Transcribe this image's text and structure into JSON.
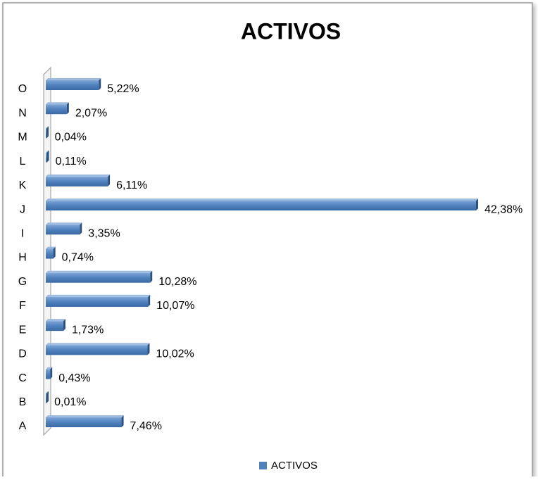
{
  "chart_data": {
    "type": "bar",
    "orientation": "horizontal",
    "title": "ACTIVOS",
    "categories": [
      "A",
      "B",
      "C",
      "D",
      "E",
      "F",
      "G",
      "H",
      "I",
      "J",
      "K",
      "L",
      "M",
      "N",
      "O"
    ],
    "series": [
      {
        "name": "ACTIVOS",
        "color": "#4f81bd",
        "values": [
          7.46,
          0.01,
          0.43,
          10.02,
          1.73,
          10.07,
          10.28,
          0.74,
          3.35,
          42.38,
          6.11,
          0.11,
          0.04,
          2.07,
          5.22
        ],
        "value_labels": [
          "7,46%",
          "0,01%",
          "0,43%",
          "10,02%",
          "1,73%",
          "10,07%",
          "10,28%",
          "0,74%",
          "3,35%",
          "42,38%",
          "6,11%",
          "0,11%",
          "0,04%",
          "2,07%",
          "5,22%"
        ]
      }
    ],
    "legend": "bottom"
  }
}
